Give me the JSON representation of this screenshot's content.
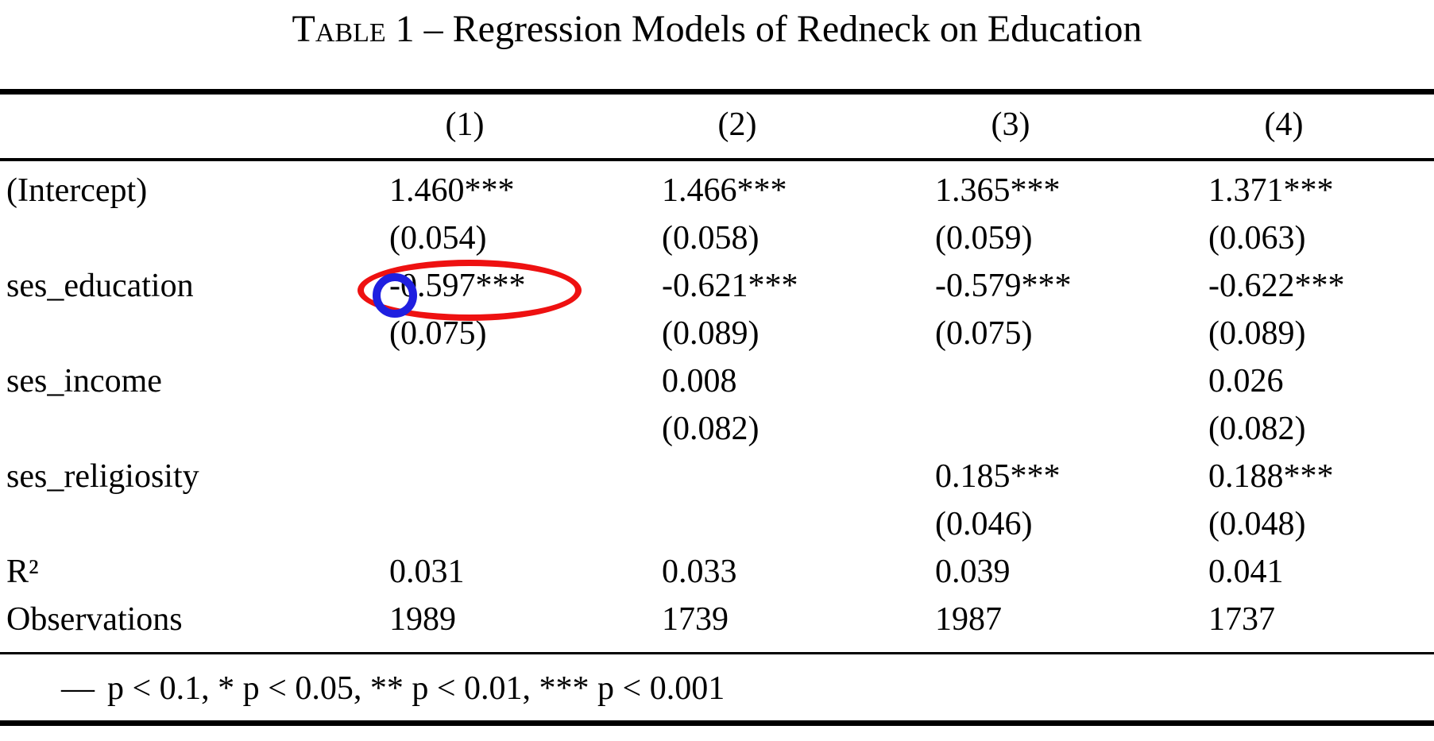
{
  "title": {
    "smallcaps": "Table",
    "rest": " 1 – Regression Models of Redneck on Education"
  },
  "table": {
    "column_headers": [
      "(1)",
      "(2)",
      "(3)",
      "(4)"
    ],
    "rows": [
      {
        "label": "(Intercept)",
        "cells": [
          "1.460***",
          "1.466***",
          "1.365***",
          "1.371***"
        ]
      },
      {
        "label": "",
        "cells": [
          "(0.054)",
          "(0.058)",
          "(0.059)",
          "(0.063)"
        ]
      },
      {
        "label": "ses_education",
        "cells": [
          "-0.597***",
          "-0.621***",
          "-0.579***",
          "-0.622***"
        ]
      },
      {
        "label": "",
        "cells": [
          "(0.075)",
          "(0.089)",
          "(0.075)",
          "(0.089)"
        ]
      },
      {
        "label": "ses_income",
        "cells": [
          "",
          "0.008",
          "",
          "0.026"
        ]
      },
      {
        "label": "",
        "cells": [
          "",
          "(0.082)",
          "",
          "(0.082)"
        ]
      },
      {
        "label": "ses_religiosity",
        "cells": [
          "",
          "",
          "0.185***",
          "0.188***"
        ]
      },
      {
        "label": "",
        "cells": [
          "",
          "",
          "(0.046)",
          "(0.048)"
        ]
      },
      {
        "label": "R²",
        "cells": [
          "0.031",
          "0.033",
          "0.039",
          "0.041"
        ]
      },
      {
        "label": "Observations",
        "cells": [
          "1989",
          "1739",
          "1987",
          "1737"
        ]
      }
    ],
    "footnote": {
      "marker": "—",
      "text": "p < 0.1, * p < 0.05, ** p < 0.01, *** p < 0.001"
    }
  },
  "annotations": {
    "red_ellipse": {
      "circled_value": "-0.597***",
      "color": "#ee1111"
    },
    "blue_circle": {
      "circled_value": "-0",
      "color": "#1f1fe0"
    }
  }
}
